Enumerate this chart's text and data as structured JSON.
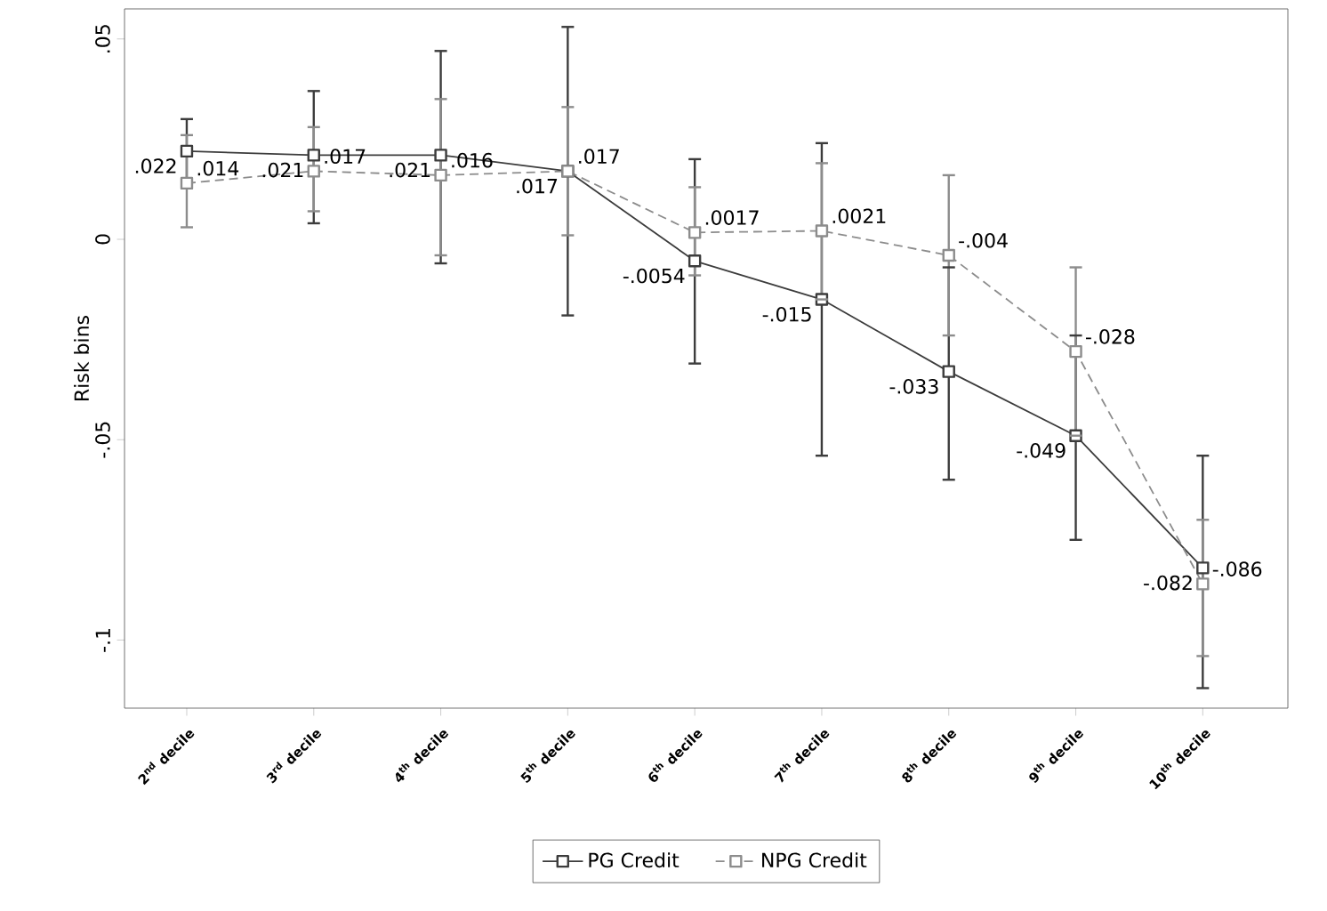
{
  "chart_data": {
    "type": "line",
    "ylabel": "Risk bins",
    "categories": [
      "2$^{nd}$ decile",
      "3$^{rd}$ decile",
      "4$^{th}$ decile",
      "5$^{th}$ decile",
      "6$^{th}$ decile",
      "7$^{th}$ decile",
      "8$^{th}$ decile",
      "9$^{th}$ decile",
      "10$^{th}$ decile"
    ],
    "series": [
      {
        "name": "PG Credit",
        "color": "#3c3c3c",
        "line_style": "solid",
        "values": [
          0.022,
          0.021,
          0.021,
          0.017,
          -0.0054,
          -0.015,
          -0.033,
          -0.049,
          -0.082
        ],
        "value_labels": [
          ".022",
          ".021",
          ".021",
          ".017",
          "-.0054",
          "-.015",
          "-.033",
          "-.049",
          "-.082"
        ],
        "errors": [
          [
            0.014,
            0.03
          ],
          [
            0.004,
            0.037
          ],
          [
            -0.006,
            0.047
          ],
          [
            -0.019,
            0.053
          ],
          [
            -0.031,
            0.02
          ],
          [
            -0.054,
            0.024
          ],
          [
            -0.06,
            -0.007
          ],
          [
            -0.075,
            -0.024
          ],
          [
            -0.112,
            -0.054
          ]
        ]
      },
      {
        "name": "NPG Credit",
        "color": "#8c8c8c",
        "line_style": "dashed",
        "values": [
          0.014,
          0.017,
          0.016,
          0.017,
          0.0017,
          0.0021,
          -0.004,
          -0.028,
          -0.086
        ],
        "value_labels": [
          ".014",
          ".017",
          ".016",
          ".017",
          ".0017",
          ".0021",
          "-.004",
          "-.028",
          "-.086"
        ],
        "errors": [
          [
            0.003,
            0.026
          ],
          [
            0.007,
            0.028
          ],
          [
            -0.004,
            0.035
          ],
          [
            0.001,
            0.033
          ],
          [
            -0.009,
            0.013
          ],
          [
            -0.015,
            0.019
          ],
          [
            -0.024,
            0.016
          ],
          [
            -0.049,
            -0.007
          ],
          [
            -0.104,
            -0.07
          ]
        ]
      }
    ],
    "ylim": [
      -0.117,
      0.0575
    ],
    "yticks": [
      {
        "value": 0.05,
        "label": ".05"
      },
      {
        "value": 0,
        "label": "0"
      },
      {
        "value": -0.05,
        "label": "-.05"
      },
      {
        "value": -0.1,
        "label": "-.1"
      }
    ],
    "marker": "square",
    "legend": "bottom",
    "grid": false
  }
}
